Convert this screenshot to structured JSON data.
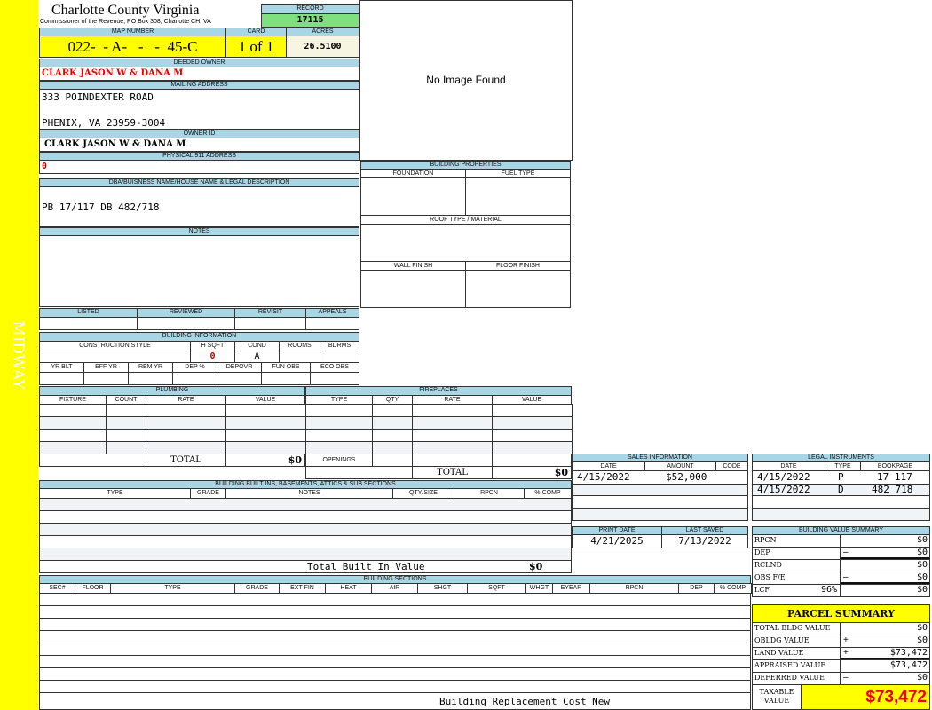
{
  "sidebar": {
    "label": "MIDWAY",
    "color": "#ffff00"
  },
  "header": {
    "title": "Charlotte County Virginia",
    "subtitle": "Commissioner of the Revenue, PO Box 308, Charlotte CH, VA"
  },
  "record": {
    "label": "RECORD",
    "value": "17115"
  },
  "map": {
    "map_label": "MAP NUMBER",
    "map_value": "022-  - A-   -   -  45-C",
    "card_label": "CARD",
    "card_value": "1 of 1",
    "acres_label": "ACRES",
    "acres_value": "26.5100"
  },
  "owner": {
    "deeded_label": "DEEDED OWNER",
    "deeded_value": "CLARK JASON W & DANA M",
    "mailing_label": "MAILING ADDRESS",
    "mailing_line1": "333 POINDEXTER ROAD",
    "mailing_line2": "PHENIX, VA 23959-3004",
    "owner_id_label": "OWNER ID",
    "owner_id_value": "CLARK JASON W & DANA M",
    "physical_label": "PHYSICAL 911 ADDRESS",
    "physical_value": "0"
  },
  "image": {
    "text": "No Image Found"
  },
  "legal": {
    "label": "DBA/BUISNESS NAME/HOUSE NAME & LEGAL DESCRIPTION",
    "value": "PB 17/117 DB 482/718"
  },
  "notes": {
    "label": "NOTES"
  },
  "props": {
    "title": "BUILDING PROPERTIES",
    "foundation": "FOUNDATION",
    "fuel": "FUEL TYPE",
    "roof": "ROOF TYPE / MATERIAL",
    "wall": "WALL FINISH",
    "floor": "FLOOR FINISH"
  },
  "review": {
    "listed": "LISTED",
    "reviewed": "REVIEWED",
    "revisit": "REVISIT",
    "appeals": "APPEALS"
  },
  "bldg_info": {
    "title": "BUILDING INFORMATION",
    "construction": "CONSTRUCTION STYLE",
    "hsqft": "H SQFT",
    "cond": "COND",
    "rooms": "ROOMS",
    "bdrms": "BDRMS",
    "hsqft_value": "0",
    "cond_value": "A",
    "yr_blt": "YR BLT",
    "eff_yr": "EFF YR",
    "rem_yr": "REM YR",
    "dep_pct": "DEP %",
    "depovr": "DEPOVR",
    "fun_obs": "FUN OBS",
    "eco_obs": "ECO OBS"
  },
  "plumbing": {
    "title": "PLUMBING",
    "cols": [
      "FIXTURE",
      "COUNT",
      "RATE",
      "VALUE"
    ],
    "total_label": "TOTAL",
    "total": "$0"
  },
  "fireplaces": {
    "title": "FIREPLACES",
    "cols": [
      "TYPE",
      "QTY",
      "RATE",
      "VALUE"
    ],
    "openings": "OPENINGS",
    "total_label": "TOTAL",
    "total": "$0"
  },
  "builtins": {
    "title": "BUILDING BUILT INS, BASEMENTS, ATTICS & SUB SECTIONS",
    "cols": [
      "TYPE",
      "GRADE",
      "NOTES",
      "QTY/SIZE",
      "RPCN",
      "% COMP"
    ],
    "total_label": "Total Built In Value",
    "total": "$0"
  },
  "sections": {
    "title": "BUILDING SECTIONS",
    "cols": [
      "SEC#",
      "FLOOR",
      "TYPE",
      "GRADE",
      "EXT FIN",
      "HEAT",
      "AIR",
      "SHGT",
      "SQFT",
      "WHGT",
      "EYEAR",
      "RPCN",
      "DEP",
      "% COMP"
    ],
    "footer": "Building Replacement Cost New"
  },
  "sales": {
    "title": "SALES INFORMATION",
    "cols": [
      "DATE",
      "AMOUNT",
      "CODE"
    ],
    "rows": [
      {
        "date": "4/15/2022",
        "amount": "$52,000",
        "code": ""
      }
    ]
  },
  "instruments": {
    "title": "LEGAL INSTRUMENTS",
    "cols": [
      "DATE",
      "TYPE",
      "BOOKPAGE"
    ],
    "rows": [
      {
        "date": "4/15/2022",
        "type": "P",
        "bookpage": "17 117"
      },
      {
        "date": "4/15/2022",
        "type": "D",
        "bookpage": "482 718"
      }
    ]
  },
  "dates": {
    "print_label": "PRINT DATE",
    "print_value": "4/21/2025",
    "saved_label": "LAST SAVED",
    "saved_value": "7/13/2022"
  },
  "bvs": {
    "title": "BUILDING VALUE SUMMARY",
    "rows": [
      {
        "label": "RPCN",
        "op": "",
        "value": "$0"
      },
      {
        "label": "DEP",
        "op": "–",
        "value": "$0"
      },
      {
        "label": "RCLND",
        "op": "",
        "value": "$0"
      },
      {
        "label": "OBS F/E",
        "op": "–",
        "value": "$0"
      },
      {
        "label": "LCF",
        "op": "",
        "pct": "96%",
        "value": "$0"
      }
    ]
  },
  "parcel": {
    "title": "PARCEL SUMMARY",
    "rows": [
      {
        "label": "TOTAL BLDG VALUE",
        "op": "",
        "value": "$0"
      },
      {
        "label": "OBLDG VALUE",
        "op": "+",
        "value": "$0"
      },
      {
        "label": "LAND VALUE",
        "op": "+",
        "value": "$73,472"
      },
      {
        "label": "APPRAISED VALUE",
        "op": "",
        "value": "$73,472"
      },
      {
        "label": "DEFERRED VALUE",
        "op": "–",
        "value": "$0"
      }
    ],
    "taxable_label": "TAXABLE VALUE",
    "taxable_value": "$73,472"
  }
}
